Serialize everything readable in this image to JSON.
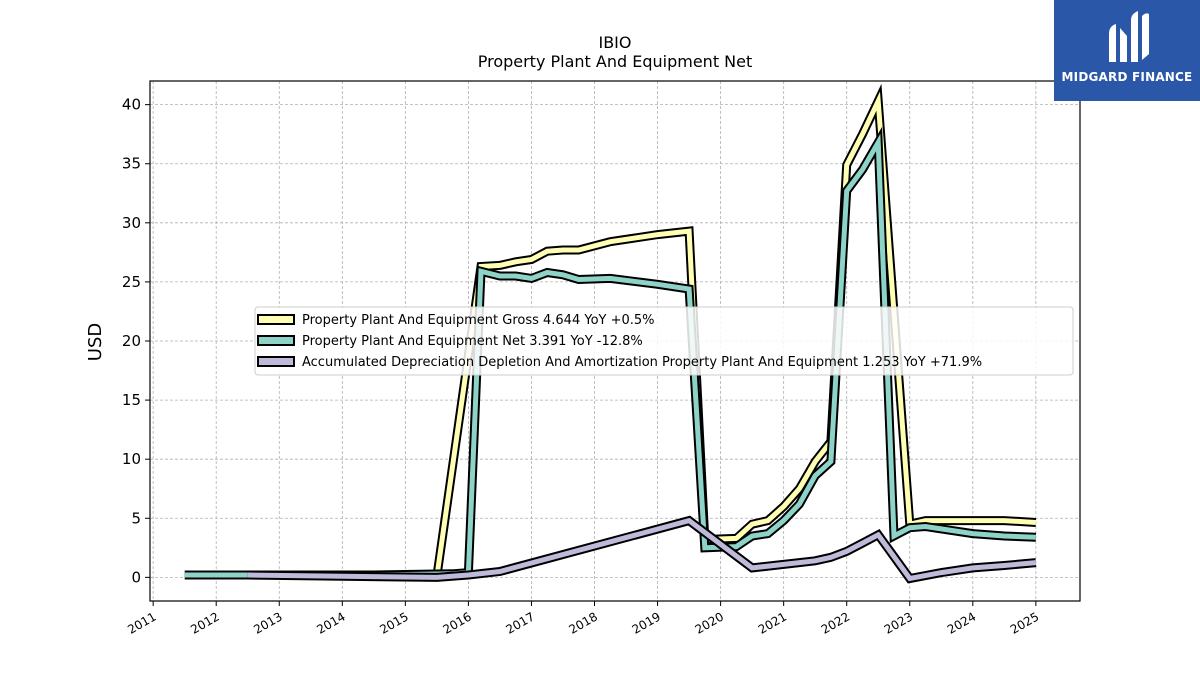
{
  "chart_data": {
    "type": "line",
    "title": "IBIO",
    "subtitle": "Property Plant And Equipment Net",
    "ylabel": "USD",
    "xlabel": "",
    "xlim": [
      2010.95,
      2025.7
    ],
    "ylim": [
      -2,
      42
    ],
    "yticks": [
      0,
      5,
      10,
      15,
      20,
      25,
      30,
      35,
      40
    ],
    "xticks": [
      "2011",
      "2012",
      "2013",
      "2014",
      "2015",
      "2016",
      "2017",
      "2018",
      "2019",
      "2020",
      "2021",
      "2022",
      "2023",
      "2024",
      "2025"
    ],
    "grid": true,
    "legend_position": "center",
    "series": [
      {
        "name": "Property Plant And Equipment Gross",
        "legend": "Property Plant And Equipment Gross  4.644 YoY +0.5%",
        "color": "#ffffb3",
        "points": [
          [
            2015.5,
            0.1
          ],
          [
            2016.2,
            26.3
          ],
          [
            2016.5,
            26.4
          ],
          [
            2016.75,
            26.7
          ],
          [
            2017.0,
            26.9
          ],
          [
            2017.25,
            27.6
          ],
          [
            2017.5,
            27.7
          ],
          [
            2017.75,
            27.7
          ],
          [
            2018.25,
            28.4
          ],
          [
            2019.0,
            29.0
          ],
          [
            2019.5,
            29.3
          ],
          [
            2019.75,
            3.2
          ],
          [
            2020.25,
            3.3
          ],
          [
            2020.5,
            4.5
          ],
          [
            2020.75,
            4.8
          ],
          [
            2021.0,
            6.0
          ],
          [
            2021.25,
            7.5
          ],
          [
            2021.5,
            9.8
          ],
          [
            2021.75,
            11.5
          ],
          [
            2022.0,
            34.9
          ],
          [
            2022.25,
            37.5
          ],
          [
            2022.5,
            40.3
          ],
          [
            2023.0,
            4.5
          ],
          [
            2023.25,
            4.8
          ],
          [
            2023.5,
            4.8
          ],
          [
            2024.0,
            4.8
          ],
          [
            2024.5,
            4.8
          ],
          [
            2025.0,
            4.64
          ]
        ]
      },
      {
        "name": "Property Plant And Equipment Net",
        "legend": "Property Plant And Equipment Net  3.391 YoY -12.8%",
        "color": "#8dd3c7",
        "points": [
          [
            2011.5,
            0.2
          ],
          [
            2014.5,
            0.2
          ],
          [
            2015.75,
            0.3
          ],
          [
            2016.0,
            0.4
          ],
          [
            2016.2,
            25.9
          ],
          [
            2016.5,
            25.5
          ],
          [
            2016.75,
            25.5
          ],
          [
            2017.0,
            25.3
          ],
          [
            2017.25,
            25.8
          ],
          [
            2017.5,
            25.6
          ],
          [
            2017.75,
            25.2
          ],
          [
            2018.25,
            25.3
          ],
          [
            2019.0,
            24.8
          ],
          [
            2019.5,
            24.4
          ],
          [
            2019.75,
            2.5
          ],
          [
            2020.25,
            2.6
          ],
          [
            2020.5,
            3.5
          ],
          [
            2020.75,
            3.7
          ],
          [
            2021.0,
            4.8
          ],
          [
            2021.25,
            6.2
          ],
          [
            2021.5,
            8.6
          ],
          [
            2021.75,
            9.8
          ],
          [
            2022.0,
            32.7
          ],
          [
            2022.25,
            34.5
          ],
          [
            2022.5,
            36.8
          ],
          [
            2022.75,
            3.5
          ],
          [
            2023.0,
            4.2
          ],
          [
            2023.25,
            4.3
          ],
          [
            2023.5,
            4.1
          ],
          [
            2024.0,
            3.7
          ],
          [
            2024.5,
            3.5
          ],
          [
            2025.0,
            3.39
          ]
        ]
      },
      {
        "name": "Accumulated Depreciation Depletion And Amortization Property Plant And Equipment",
        "legend": "Accumulated Depreciation Depletion And Amortization Property Plant And Equipment  1.253 YoY +71.9%",
        "color": "#bebada",
        "points": [
          [
            2012.5,
            0.2
          ],
          [
            2015.5,
            0.0
          ],
          [
            2016.0,
            0.2
          ],
          [
            2016.5,
            0.5
          ],
          [
            2019.5,
            4.8
          ],
          [
            2020.5,
            0.8
          ],
          [
            2021.0,
            1.1
          ],
          [
            2021.5,
            1.4
          ],
          [
            2021.75,
            1.7
          ],
          [
            2022.0,
            2.2
          ],
          [
            2022.25,
            2.9
          ],
          [
            2022.5,
            3.6
          ],
          [
            2023.0,
            -0.1
          ],
          [
            2023.5,
            0.4
          ],
          [
            2024.0,
            0.8
          ],
          [
            2024.5,
            1.0
          ],
          [
            2025.0,
            1.25
          ]
        ]
      }
    ]
  },
  "logo": {
    "text": "MIDGARD FINANCE"
  }
}
